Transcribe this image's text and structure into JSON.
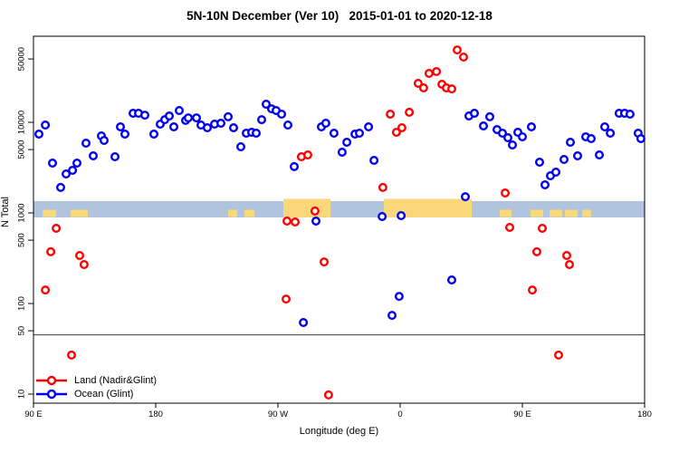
{
  "chart_data": {
    "type": "scatter",
    "title": "5N-10N December (Ver 10)   2015-01-01 to 2020-12-18",
    "xlabel": "Longitude (deg E)",
    "ylabel": "N Total",
    "x_axis": {
      "note": "longitude unwrapped eastward from 90E; 270=90W, 360=0, 450=90E, 540=180",
      "range_deg": [
        90,
        540
      ],
      "ticks": [
        {
          "deg": 90,
          "label": "90 E"
        },
        {
          "deg": 180,
          "label": "180"
        },
        {
          "deg": 270,
          "label": "90 W"
        },
        {
          "deg": 360,
          "label": "0"
        },
        {
          "deg": 450,
          "label": "90 E"
        },
        {
          "deg": 540,
          "label": "180"
        }
      ]
    },
    "y_axis": {
      "scale": "log10",
      "range": [
        7.9,
        89000
      ],
      "ticks": [
        10,
        50,
        100,
        500,
        1000,
        5000,
        10000,
        50000
      ]
    },
    "reference_line_y": 45,
    "reference_line_color": "#3a3a3a",
    "ocean_band": {
      "color": "#B0C4DE",
      "y_from": 891,
      "y_to": 1350
    },
    "land_band_color": "#F8D878",
    "land_band_segments": [
      {
        "deg_from": 96.7,
        "deg_to": 106.7,
        "size": "small"
      },
      {
        "deg_from": 117.3,
        "deg_to": 130.0,
        "size": "small"
      },
      {
        "deg_from": 233.3,
        "deg_to": 240.0,
        "size": "small"
      },
      {
        "deg_from": 245.3,
        "deg_to": 252.7,
        "size": "small"
      },
      {
        "deg_from": 274.0,
        "deg_to": 308.7,
        "size": "large"
      },
      {
        "deg_from": 348.0,
        "deg_to": 412.7,
        "size": "large"
      },
      {
        "deg_from": 433.3,
        "deg_to": 442.0,
        "size": "small"
      },
      {
        "deg_from": 456.0,
        "deg_to": 465.3,
        "size": "small"
      },
      {
        "deg_from": 470.0,
        "deg_to": 479.3,
        "size": "small"
      },
      {
        "deg_from": 481.3,
        "deg_to": 490.7,
        "size": "small"
      },
      {
        "deg_from": 494.0,
        "deg_to": 500.7,
        "size": "small"
      }
    ],
    "series": [
      {
        "name": "Land (Nadir&Glint)",
        "color": "#FF0000",
        "points": [
          [
            106.7,
            676
          ],
          [
            102.7,
            372
          ],
          [
            124.0,
            339
          ],
          [
            127.3,
            269
          ],
          [
            98.7,
            141
          ],
          [
            118.0,
            27
          ],
          [
            276.7,
            813
          ],
          [
            282.7,
            794
          ],
          [
            287.3,
            4170
          ],
          [
            292.0,
            4370
          ],
          [
            297.3,
            1050
          ],
          [
            304.0,
            288
          ],
          [
            276.0,
            112
          ],
          [
            307.3,
            9.8
          ],
          [
            352.7,
            12300
          ],
          [
            366.7,
            12900
          ],
          [
            357.3,
            7760
          ],
          [
            361.3,
            8710
          ],
          [
            347.3,
            1910
          ],
          [
            373.3,
            26900
          ],
          [
            377.3,
            24000
          ],
          [
            381.3,
            34700
          ],
          [
            386.7,
            36300
          ],
          [
            390.7,
            26300
          ],
          [
            394.0,
            24000
          ],
          [
            398.0,
            23400
          ],
          [
            402.0,
            63000
          ],
          [
            406.7,
            52500
          ],
          [
            437.3,
            1660
          ],
          [
            440.7,
            692
          ],
          [
            464.7,
            676
          ],
          [
            460.7,
            372
          ],
          [
            482.7,
            339
          ],
          [
            484.7,
            269
          ],
          [
            457.3,
            141
          ],
          [
            476.7,
            27
          ]
        ]
      },
      {
        "name": "Ocean (Glint)",
        "color": "#0000EE",
        "points": [
          [
            94.0,
            7410
          ],
          [
            98.7,
            9330
          ],
          [
            104.0,
            3550
          ],
          [
            110.0,
            1910
          ],
          [
            114.0,
            2690
          ],
          [
            118.7,
            2950
          ],
          [
            122.0,
            3550
          ],
          [
            128.7,
            5890
          ],
          [
            134.0,
            4270
          ],
          [
            140.0,
            7080
          ],
          [
            142.0,
            6310
          ],
          [
            150.0,
            4170
          ],
          [
            154.0,
            8910
          ],
          [
            157.3,
            7410
          ],
          [
            163.3,
            12600
          ],
          [
            167.3,
            12600
          ],
          [
            172.0,
            12000
          ],
          [
            178.7,
            7410
          ],
          [
            183.3,
            9550
          ],
          [
            186.7,
            10700
          ],
          [
            190.0,
            11750
          ],
          [
            193.3,
            8910
          ],
          [
            197.3,
            13500
          ],
          [
            202.0,
            10500
          ],
          [
            204.0,
            11200
          ],
          [
            210.0,
            11200
          ],
          [
            213.3,
            9330
          ],
          [
            218.0,
            8710
          ],
          [
            223.3,
            9550
          ],
          [
            228.0,
            9770
          ],
          [
            233.3,
            11500
          ],
          [
            237.3,
            8710
          ],
          [
            242.7,
            5370
          ],
          [
            246.7,
            7590
          ],
          [
            250.7,
            7760
          ],
          [
            254.0,
            7590
          ],
          [
            258.0,
            10700
          ],
          [
            261.3,
            15850
          ],
          [
            265.3,
            14100
          ],
          [
            268.7,
            13500
          ],
          [
            272.7,
            12300
          ],
          [
            277.3,
            9330
          ],
          [
            282.0,
            3240
          ],
          [
            298.0,
            813
          ],
          [
            288.7,
            61.7
          ],
          [
            302.0,
            8910
          ],
          [
            305.3,
            9770
          ],
          [
            311.3,
            7590
          ],
          [
            317.3,
            4680
          ],
          [
            320.7,
            6030
          ],
          [
            326.7,
            7410
          ],
          [
            330.0,
            7590
          ],
          [
            336.7,
            8910
          ],
          [
            340.7,
            3800
          ],
          [
            346.7,
            912
          ],
          [
            360.7,
            933
          ],
          [
            354.0,
            74
          ],
          [
            359.3,
            120
          ],
          [
            398.0,
            182
          ],
          [
            408.0,
            1510
          ],
          [
            410.7,
            11750
          ],
          [
            414.7,
            12600
          ],
          [
            421.3,
            9120
          ],
          [
            426.0,
            11500
          ],
          [
            431.3,
            8320
          ],
          [
            435.3,
            7590
          ],
          [
            439.3,
            6760
          ],
          [
            442.7,
            5620
          ],
          [
            446.7,
            7760
          ],
          [
            450.0,
            6920
          ],
          [
            456.7,
            8910
          ],
          [
            462.7,
            3630
          ],
          [
            466.7,
            2040
          ],
          [
            470.7,
            2570
          ],
          [
            474.7,
            2820
          ],
          [
            480.7,
            3890
          ],
          [
            485.3,
            6030
          ],
          [
            490.7,
            4270
          ],
          [
            496.7,
            6920
          ],
          [
            500.7,
            6610
          ],
          [
            506.7,
            4370
          ],
          [
            510.7,
            8910
          ],
          [
            514.7,
            7590
          ],
          [
            521.3,
            12600
          ],
          [
            525.3,
            12600
          ],
          [
            529.3,
            12300
          ],
          [
            535.3,
            7590
          ],
          [
            537.3,
            6610
          ]
        ]
      }
    ]
  }
}
